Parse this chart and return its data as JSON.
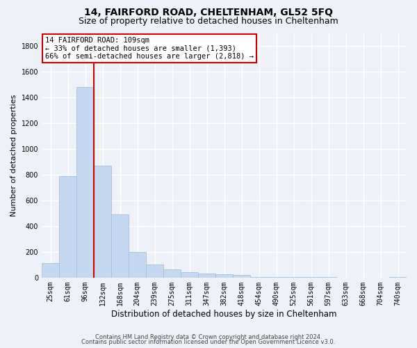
{
  "title": "14, FAIRFORD ROAD, CHELTENHAM, GL52 5FQ",
  "subtitle": "Size of property relative to detached houses in Cheltenham",
  "xlabel": "Distribution of detached houses by size in Cheltenham",
  "ylabel": "Number of detached properties",
  "categories": [
    "25sqm",
    "61sqm",
    "96sqm",
    "132sqm",
    "168sqm",
    "204sqm",
    "239sqm",
    "275sqm",
    "311sqm",
    "347sqm",
    "382sqm",
    "418sqm",
    "454sqm",
    "490sqm",
    "525sqm",
    "561sqm",
    "597sqm",
    "633sqm",
    "668sqm",
    "704sqm",
    "740sqm"
  ],
  "values": [
    110,
    790,
    1480,
    870,
    490,
    200,
    100,
    65,
    42,
    32,
    25,
    20,
    5,
    3,
    2,
    2,
    2,
    1,
    1,
    1,
    5
  ],
  "bar_color": "#c5d8f0",
  "bar_edge_color": "#a0b8d8",
  "red_line_index": 2,
  "annotation_text": "14 FAIRFORD ROAD: 109sqm\n← 33% of detached houses are smaller (1,393)\n66% of semi-detached houses are larger (2,818) →",
  "annotation_box_color": "#ffffff",
  "annotation_border_color": "#cc0000",
  "ylim": [
    0,
    1900
  ],
  "yticks": [
    0,
    200,
    400,
    600,
    800,
    1000,
    1200,
    1400,
    1600,
    1800
  ],
  "footer_line1": "Contains HM Land Registry data © Crown copyright and database right 2024.",
  "footer_line2": "Contains public sector information licensed under the Open Government Licence v3.0.",
  "background_color": "#eef2f8",
  "plot_background": "#eef2f8",
  "grid_color": "#ffffff",
  "title_fontsize": 10,
  "subtitle_fontsize": 9,
  "tick_fontsize": 7,
  "ylabel_fontsize": 8,
  "xlabel_fontsize": 8.5,
  "footer_fontsize": 6,
  "annotation_fontsize": 7.5
}
